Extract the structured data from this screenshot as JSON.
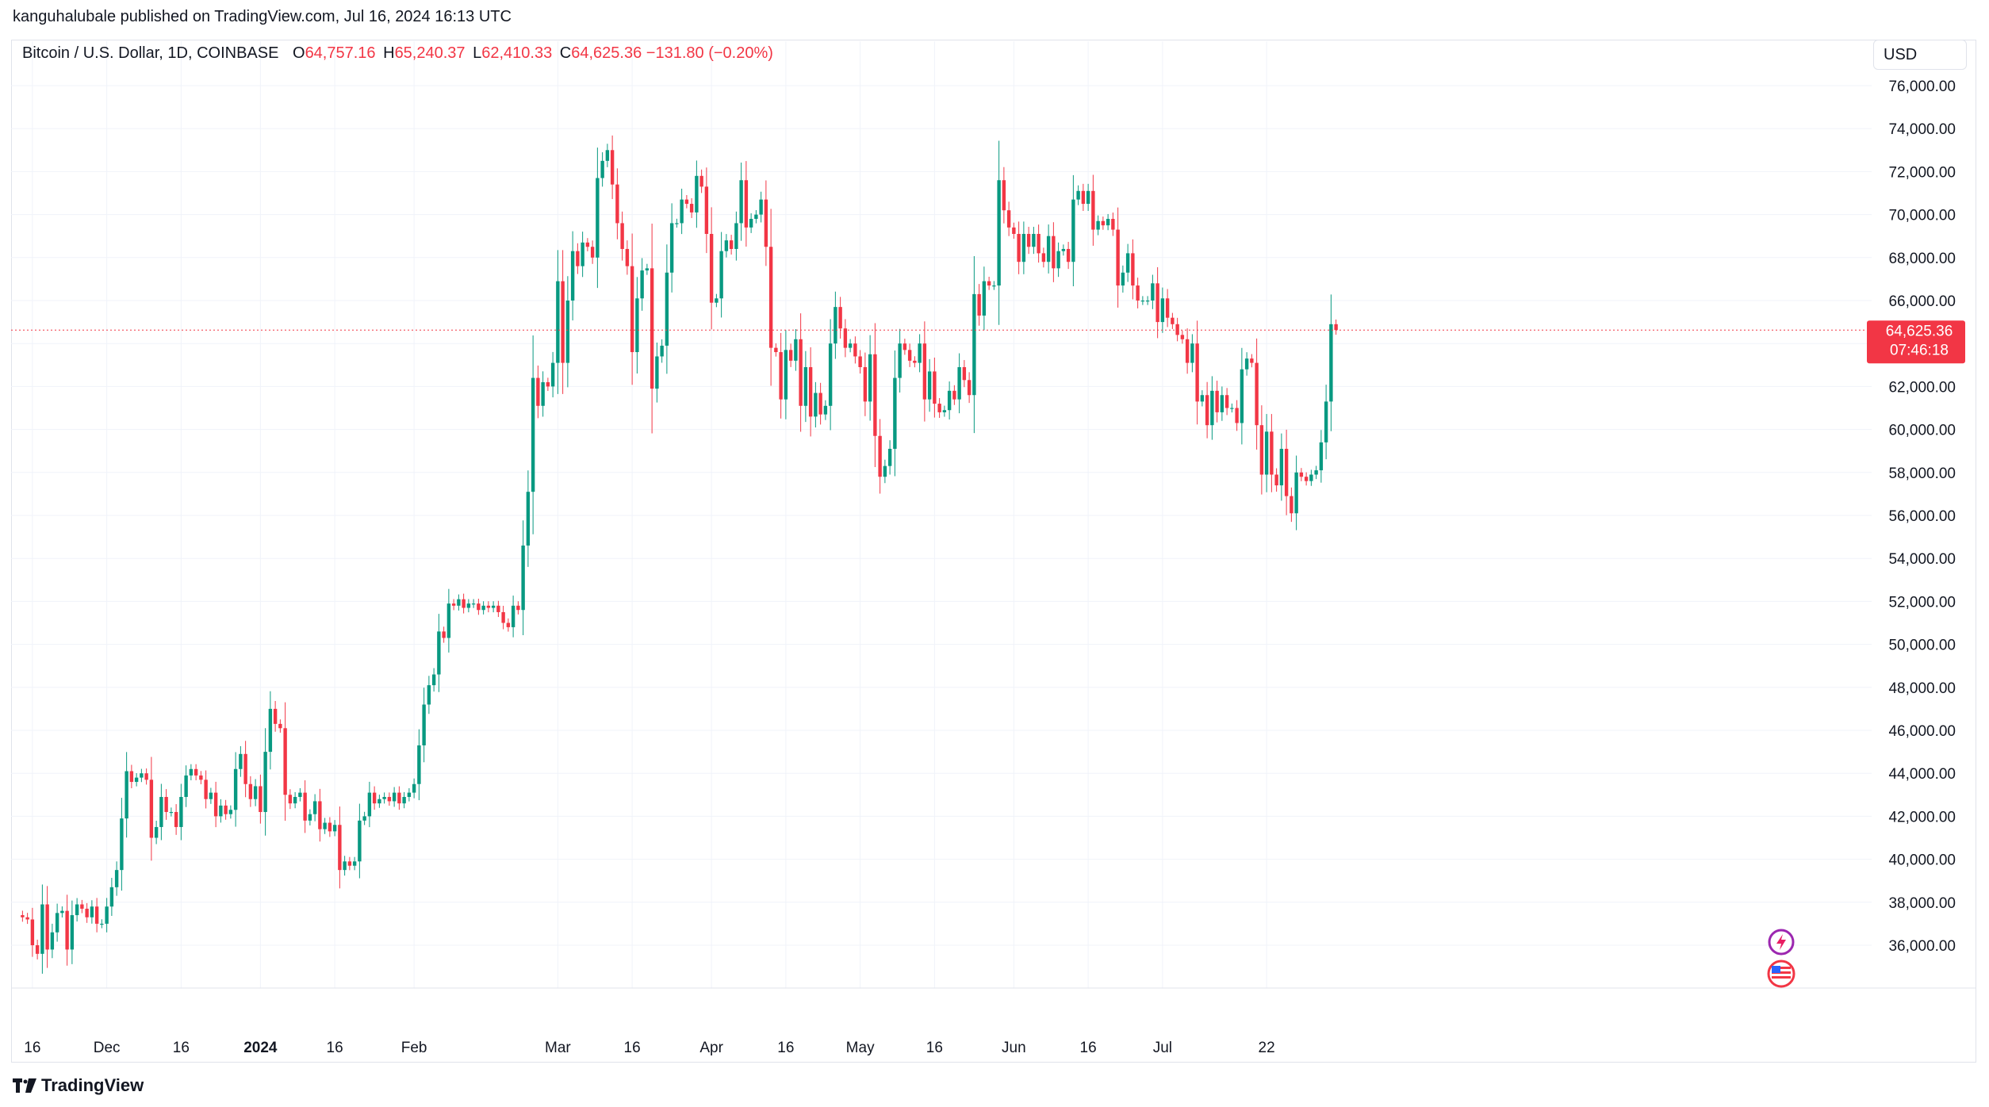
{
  "publisher": "kanguhalubale published on TradingView.com, Jul 16, 2024 16:13 UTC",
  "legend": {
    "symbol": "Bitcoin / U.S. Dollar, 1D, COINBASE",
    "o_label": "O",
    "o_value": "64,757.16",
    "h_label": "H",
    "h_value": "65,240.37",
    "l_label": "L",
    "l_value": "62,410.33",
    "c_label": "C",
    "c_value": "64,625.36",
    "change": "−131.80 (−0.20%)"
  },
  "currency": "USD",
  "last_price": {
    "price": "64,625.36",
    "countdown": "07:46:18"
  },
  "brand": "TradingView",
  "colors": {
    "up": "#089981",
    "down": "#f23645",
    "grid": "#f0f3fa",
    "text": "#131722"
  },
  "icons": [
    "lightning-badge-icon",
    "us-flag-icon"
  ],
  "chart_data": {
    "type": "candlestick",
    "title": "Bitcoin / U.S. Dollar, 1D, COINBASE",
    "ylim": [
      34000,
      77000
    ],
    "y_ticks": [
      "76,000.00",
      "74,000.00",
      "72,000.00",
      "70,000.00",
      "68,000.00",
      "66,000.00",
      "64,000.00",
      "62,000.00",
      "60,000.00",
      "58,000.00",
      "56,000.00",
      "54,000.00",
      "52,000.00",
      "50,000.00",
      "48,000.00",
      "46,000.00",
      "44,000.00",
      "42,000.00",
      "40,000.00",
      "38,000.00",
      "36,000.00"
    ],
    "x_ticks": [
      {
        "label": "16",
        "day": 2,
        "bold": false
      },
      {
        "label": "Dec",
        "day": 17,
        "bold": false
      },
      {
        "label": "16",
        "day": 32,
        "bold": false
      },
      {
        "label": "2024",
        "day": 48,
        "bold": true
      },
      {
        "label": "16",
        "day": 63,
        "bold": false
      },
      {
        "label": "Feb",
        "day": 79,
        "bold": false
      },
      {
        "label": "Mar",
        "day": 108,
        "bold": false
      },
      {
        "label": "16",
        "day": 123,
        "bold": false
      },
      {
        "label": "Apr",
        "day": 139,
        "bold": false
      },
      {
        "label": "16",
        "day": 154,
        "bold": false
      },
      {
        "label": "May",
        "day": 169,
        "bold": false
      },
      {
        "label": "16",
        "day": 184,
        "bold": false
      },
      {
        "label": "Jun",
        "day": 200,
        "bold": false
      },
      {
        "label": "16",
        "day": 215,
        "bold": false
      },
      {
        "label": "Jul",
        "day": 230,
        "bold": false
      },
      {
        "label": "22",
        "day": 251,
        "bold": false
      }
    ],
    "first_day_offset": -1.5,
    "closes": [
      37300,
      37200,
      36000,
      35600,
      37900,
      35800,
      36600,
      37500,
      37600,
      35800,
      37400,
      37900,
      37700,
      37300,
      37800,
      37000,
      37000,
      37800,
      38700,
      39500,
      41900,
      44100,
      43600,
      43800,
      44000,
      43700,
      41000,
      41500,
      42900,
      42200,
      42200,
      41500,
      42900,
      43900,
      44200,
      43900,
      43700,
      42800,
      43100,
      42000,
      42500,
      42100,
      42300,
      44200,
      44900,
      43500,
      42800,
      43400,
      42200,
      45000,
      47000,
      46300,
      46100,
      43000,
      42600,
      42900,
      43100,
      41800,
      42100,
      42700,
      41400,
      41700,
      41300,
      41600,
      39500,
      39900,
      39700,
      39900,
      41800,
      42000,
      43100,
      42600,
      42800,
      42900,
      42700,
      43100,
      42600,
      42900,
      43100,
      43500,
      45300,
      47200,
      48100,
      48600,
      50600,
      50300,
      51900,
      51800,
      52100,
      51700,
      51900,
      51900,
      51600,
      51800,
      51700,
      51800,
      51500,
      51000,
      50800,
      51800,
      51600,
      54600,
      57100,
      62400,
      61100,
      62200,
      62000,
      63100,
      66900,
      63100,
      66000,
      68300,
      67600,
      68700,
      68500,
      68000,
      71700,
      72500,
      73000,
      71400,
      69600,
      68400,
      67600,
      63600,
      66100,
      67400,
      67500,
      61900,
      63400,
      63900,
      67300,
      69600,
      69600,
      70700,
      70500,
      70100,
      71800,
      71300,
      69100,
      65900,
      66100,
      68300,
      68800,
      68400,
      69600,
      71600,
      69400,
      69800,
      70000,
      70700,
      68500,
      63800,
      63600,
      61400,
      63700,
      63200,
      64200,
      61100,
      62900,
      60600,
      61700,
      60700,
      61100,
      64000,
      65700,
      64700,
      63800,
      64000,
      63400,
      62900,
      61300,
      63500,
      59700,
      57800,
      58300,
      59100,
      62400,
      64000,
      63700,
      63200,
      63100,
      64000,
      61400,
      62700,
      61200,
      60800,
      60900,
      61800,
      61400,
      62900,
      62300,
      61600,
      66300,
      65300,
      66900,
      66700,
      66700,
      71600,
      70200,
      69400,
      69100,
      67800,
      69100,
      68500,
      69100,
      68200,
      67800,
      69000,
      67500,
      68300,
      68400,
      67800,
      70700,
      71100,
      70500,
      71100,
      69300,
      69700,
      69500,
      69800,
      69300,
      66700,
      67300,
      68200,
      66700,
      66000,
      66000,
      66000,
      66800,
      65000,
      66100,
      65200,
      64900,
      64400,
      64200,
      63100,
      64000,
      61300,
      61600,
      60200,
      61800,
      60800,
      61600,
      61000,
      61000,
      60300,
      62800,
      63300,
      63100,
      60200,
      57900,
      59900,
      57900,
      57400,
      59100,
      56900,
      56100,
      58000,
      57800,
      57600,
      57900,
      58100,
      59400,
      61300,
      64900,
      64625
    ]
  }
}
